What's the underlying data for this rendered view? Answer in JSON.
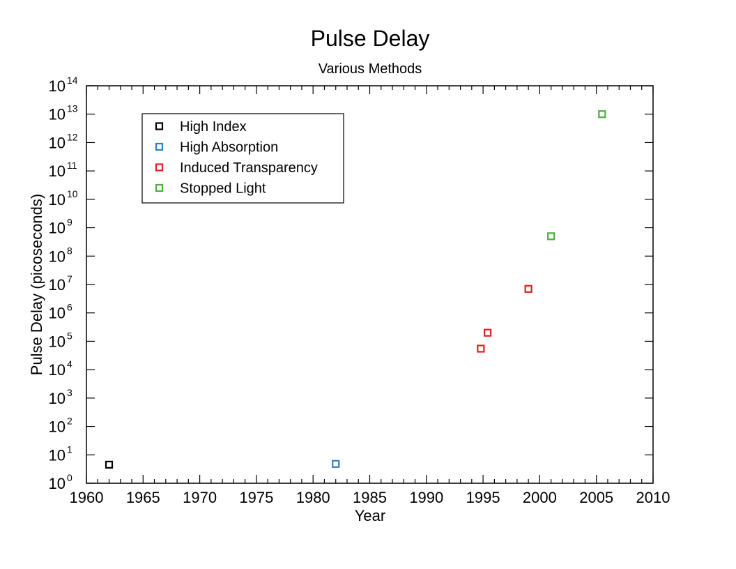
{
  "chart_data": {
    "type": "scatter",
    "title": "Pulse Delay",
    "subtitle": "Various Methods",
    "xlabel": "Year",
    "ylabel": "Pulse Delay (picoseconds)",
    "xlim": [
      1960,
      2010
    ],
    "ylim": [
      1,
      100000000000000.0
    ],
    "yscale": "log",
    "xticks": [
      "1960",
      "1965",
      "1970",
      "1975",
      "1980",
      "1985",
      "1990",
      "1995",
      "2000",
      "2005",
      "2010"
    ],
    "yticks": [
      {
        "base": "10",
        "exp": "0"
      },
      {
        "base": "10",
        "exp": "1"
      },
      {
        "base": "10",
        "exp": "2"
      },
      {
        "base": "10",
        "exp": "3"
      },
      {
        "base": "10",
        "exp": "4"
      },
      {
        "base": "10",
        "exp": "5"
      },
      {
        "base": "10",
        "exp": "6"
      },
      {
        "base": "10",
        "exp": "7"
      },
      {
        "base": "10",
        "exp": "8"
      },
      {
        "base": "10",
        "exp": "9"
      },
      {
        "base": "10",
        "exp": "10"
      },
      {
        "base": "10",
        "exp": "11"
      },
      {
        "base": "10",
        "exp": "12"
      },
      {
        "base": "10",
        "exp": "13"
      },
      {
        "base": "10",
        "exp": "14"
      }
    ],
    "grid": false,
    "legend_position": "top-left",
    "series": [
      {
        "name": "High Index",
        "color": "#000000",
        "points": [
          {
            "x": 1962,
            "y": 4.5
          }
        ]
      },
      {
        "name": "High Absorption",
        "color": "#2e7fc0",
        "points": [
          {
            "x": 1982,
            "y": 4.8
          }
        ]
      },
      {
        "name": "Induced Transparency",
        "color": "#e02020",
        "points": [
          {
            "x": 1994.8,
            "y": 55000
          },
          {
            "x": 1995.4,
            "y": 200000
          },
          {
            "x": 1999,
            "y": 7000000
          }
        ]
      },
      {
        "name": "Stopped Light",
        "color": "#4caf3f",
        "points": [
          {
            "x": 2001,
            "y": 500000000
          },
          {
            "x": 2005.5,
            "y": 10000000000000.0
          }
        ]
      }
    ]
  }
}
